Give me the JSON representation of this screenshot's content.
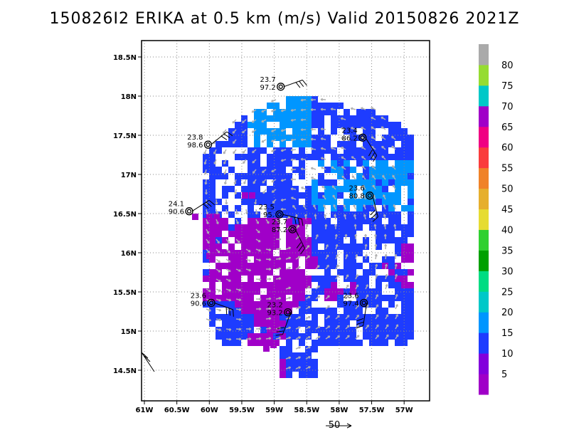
{
  "title": "150826I2 ERIKA at 0.5 km (m/s) Valid 20150826 2021Z",
  "axes": {
    "x_ticks": [
      "61W",
      "60.5W",
      "60W",
      "59.5W",
      "59W",
      "58.5W",
      "58W",
      "57.5W",
      "57W"
    ],
    "y_ticks": [
      "18.5N",
      "18N",
      "17.5N",
      "17N",
      "16.5N",
      "16N",
      "15.5N",
      "15N",
      "14.5N"
    ]
  },
  "colorbar": {
    "labels": [
      "5",
      "10",
      "15",
      "20",
      "25",
      "30",
      "35",
      "40",
      "45",
      "50",
      "55",
      "60",
      "65",
      "70",
      "75",
      "80"
    ],
    "colors": [
      "#a000c8",
      "#8200dc",
      "#1e3cff",
      "#0096ff",
      "#00c8c8",
      "#00dc82",
      "#00a000",
      "#30d030",
      "#e6dc32",
      "#e6af2d",
      "#f08228",
      "#fa3c3c",
      "#f00082",
      "#a000c8",
      "#00c8c8",
      "#96dc32",
      "#aaaaaa"
    ]
  },
  "dropsondes": [
    {
      "lat": 18.12,
      "lon": 58.9,
      "speed": "23.7",
      "pressure": "97.2"
    },
    {
      "lat": 17.47,
      "lon": 57.64,
      "speed": "23.4",
      "pressure": "86.2"
    },
    {
      "lat": 17.38,
      "lon": 60.02,
      "speed": "23.8",
      "pressure": "98.6"
    },
    {
      "lat": 16.73,
      "lon": 57.53,
      "speed": "23.6",
      "pressure": "80.8"
    },
    {
      "lat": 16.53,
      "lon": 60.31,
      "speed": "24.1",
      "pressure": "90.6"
    },
    {
      "lat": 16.49,
      "lon": 58.92,
      "speed": "23.5",
      "pressure": "95."
    },
    {
      "lat": 16.3,
      "lon": 58.72,
      "speed": "23.7",
      "pressure": "87.2"
    },
    {
      "lat": 15.36,
      "lon": 57.62,
      "speed": "23.6",
      "pressure": "97.4"
    },
    {
      "lat": 15.36,
      "lon": 59.97,
      "speed": "23.6",
      "pressure": "90.6"
    },
    {
      "lat": 15.24,
      "lon": 58.79,
      "speed": "23.2",
      "pressure": "93.2"
    }
  ],
  "reference_vector": {
    "value": "50"
  }
}
